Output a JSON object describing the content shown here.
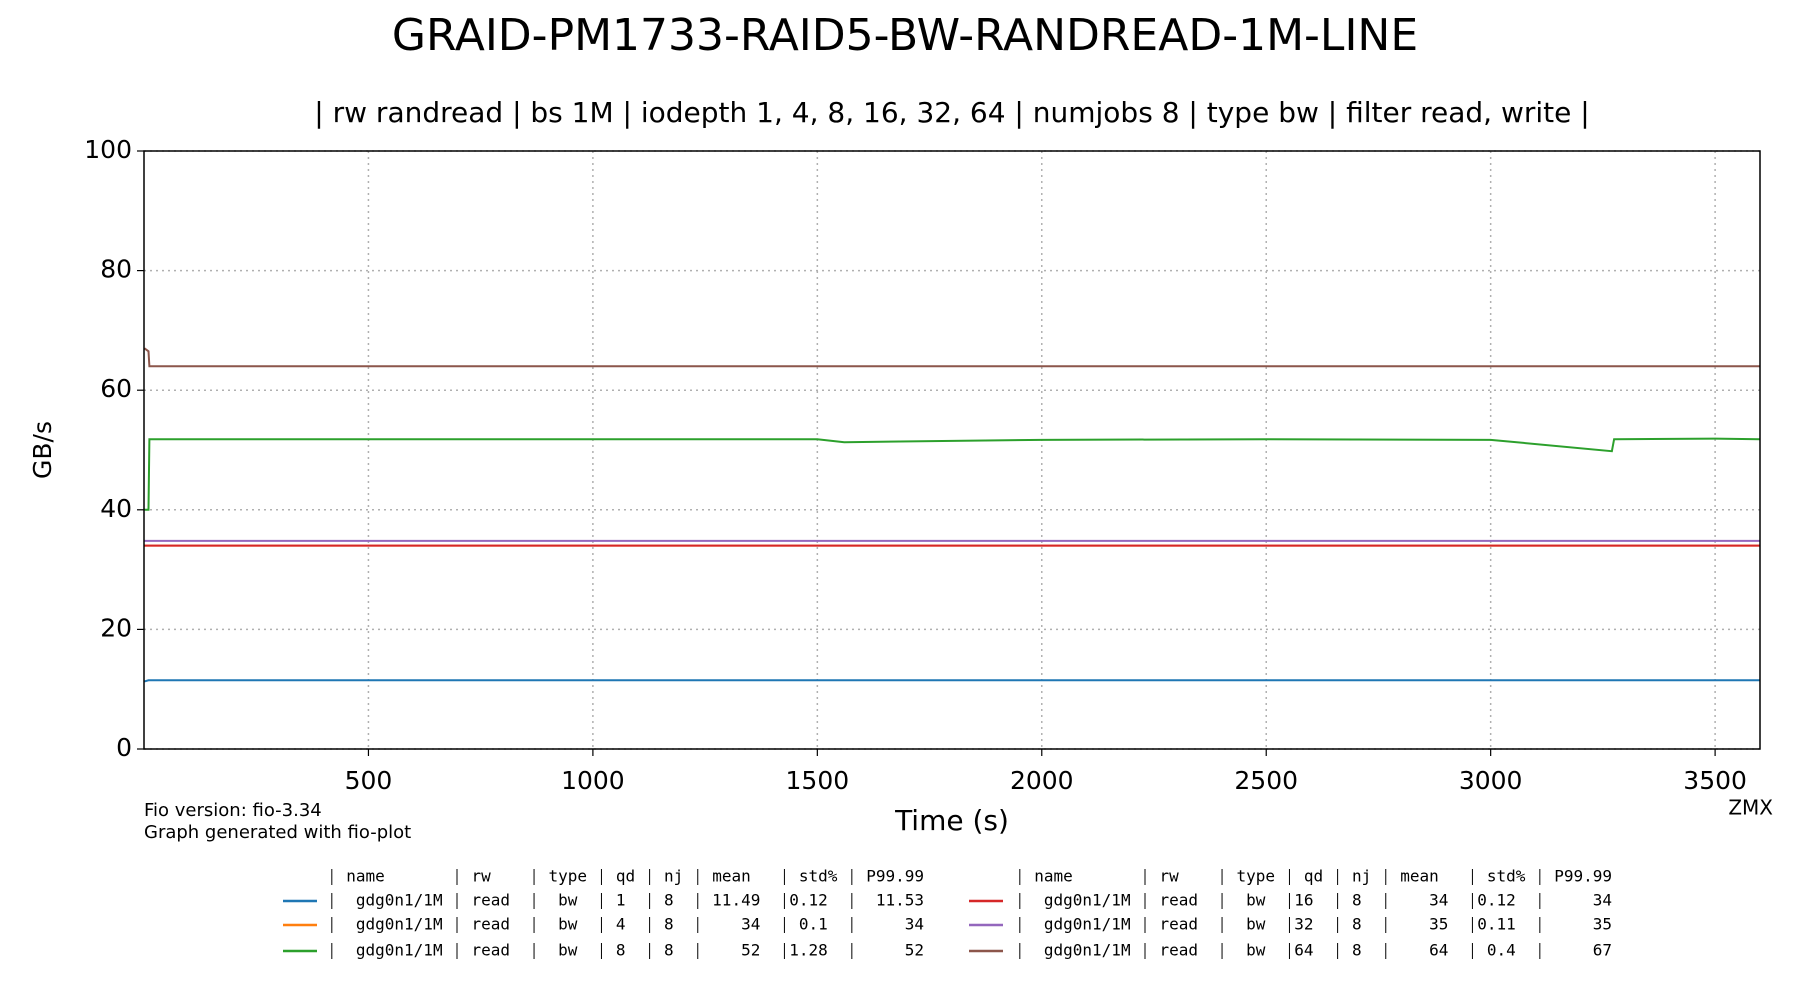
{
  "chart_data": {
    "type": "line",
    "title": "GRAID-PM1733-RAID5-BW-RANDREAD-1M-LINE",
    "subtitle": "| rw randread | bs 1M | iodepth 1, 4, 8, 16, 32, 64 | numjobs 8 | type bw | filter read, write |",
    "x_label": "Time (s)",
    "y_label": "GB/s",
    "x": [
      1,
      10,
      12,
      20,
      500,
      1000,
      1500,
      1560,
      2000,
      2500,
      3000,
      3270,
      3275,
      3500,
      3600
    ],
    "series": [
      {
        "color": "#1f77b4",
        "values": [
          11.3,
          11.5,
          11.5,
          11.5,
          11.5,
          11.5,
          11.5,
          11.5,
          11.5,
          11.5,
          11.5,
          11.5,
          11.5,
          11.5,
          11.5
        ]
      },
      {
        "color": "#ff7f0e",
        "values": [
          34,
          34,
          34,
          34,
          34,
          34,
          34,
          34,
          34,
          34,
          34,
          34,
          34,
          34,
          34
        ]
      },
      {
        "color": "#2ca02c",
        "values": [
          40,
          40,
          51.8,
          51.8,
          51.8,
          51.8,
          51.8,
          51.3,
          51.7,
          51.8,
          51.7,
          49.8,
          51.8,
          51.9,
          51.8
        ]
      },
      {
        "color": "#d62728",
        "values": [
          34,
          34,
          34,
          34,
          34,
          34,
          34,
          34,
          34,
          34,
          34,
          34,
          34,
          34,
          34
        ]
      },
      {
        "color": "#9467bd",
        "values": [
          34.8,
          34.8,
          34.8,
          34.8,
          34.8,
          34.8,
          34.8,
          34.8,
          34.8,
          34.8,
          34.8,
          34.8,
          34.8,
          34.8,
          34.8
        ]
      },
      {
        "color": "#8c564b",
        "values": [
          67,
          66.5,
          64,
          64,
          64,
          64,
          64,
          64,
          64,
          64,
          64,
          64,
          64,
          64,
          64
        ]
      }
    ],
    "xlim": [
      0,
      3600
    ],
    "xticks": [
      500,
      1000,
      1500,
      2000,
      2500,
      3000,
      3500
    ],
    "ylim": [
      0,
      100
    ],
    "yticks": [
      0,
      20,
      40,
      60,
      80,
      100
    ],
    "grid": true,
    "annotations": [
      "Fio version: fio-3.34",
      "Graph generated with fio-plot",
      "ZMX"
    ],
    "legend_table": {
      "header": [
        "name",
        "rw",
        "type",
        "qd",
        "nj",
        "mean",
        "std%",
        "P99.99"
      ],
      "rows": [
        [
          "gdg0n1/1M",
          "read",
          "bw",
          1,
          8,
          11.49,
          0.12,
          11.53
        ],
        [
          "gdg0n1/1M",
          "read",
          "bw",
          4,
          8,
          34,
          0.1,
          34
        ],
        [
          "gdg0n1/1M",
          "read",
          "bw",
          8,
          8,
          52,
          1.28,
          52
        ],
        [
          "gdg0n1/1M",
          "read",
          "bw",
          16,
          8,
          34,
          0.12,
          34
        ],
        [
          "gdg0n1/1M",
          "read",
          "bw",
          32,
          8,
          35,
          0.11,
          35
        ],
        [
          "gdg0n1/1M",
          "read",
          "bw",
          64,
          8,
          64,
          0.4,
          67
        ]
      ]
    }
  }
}
